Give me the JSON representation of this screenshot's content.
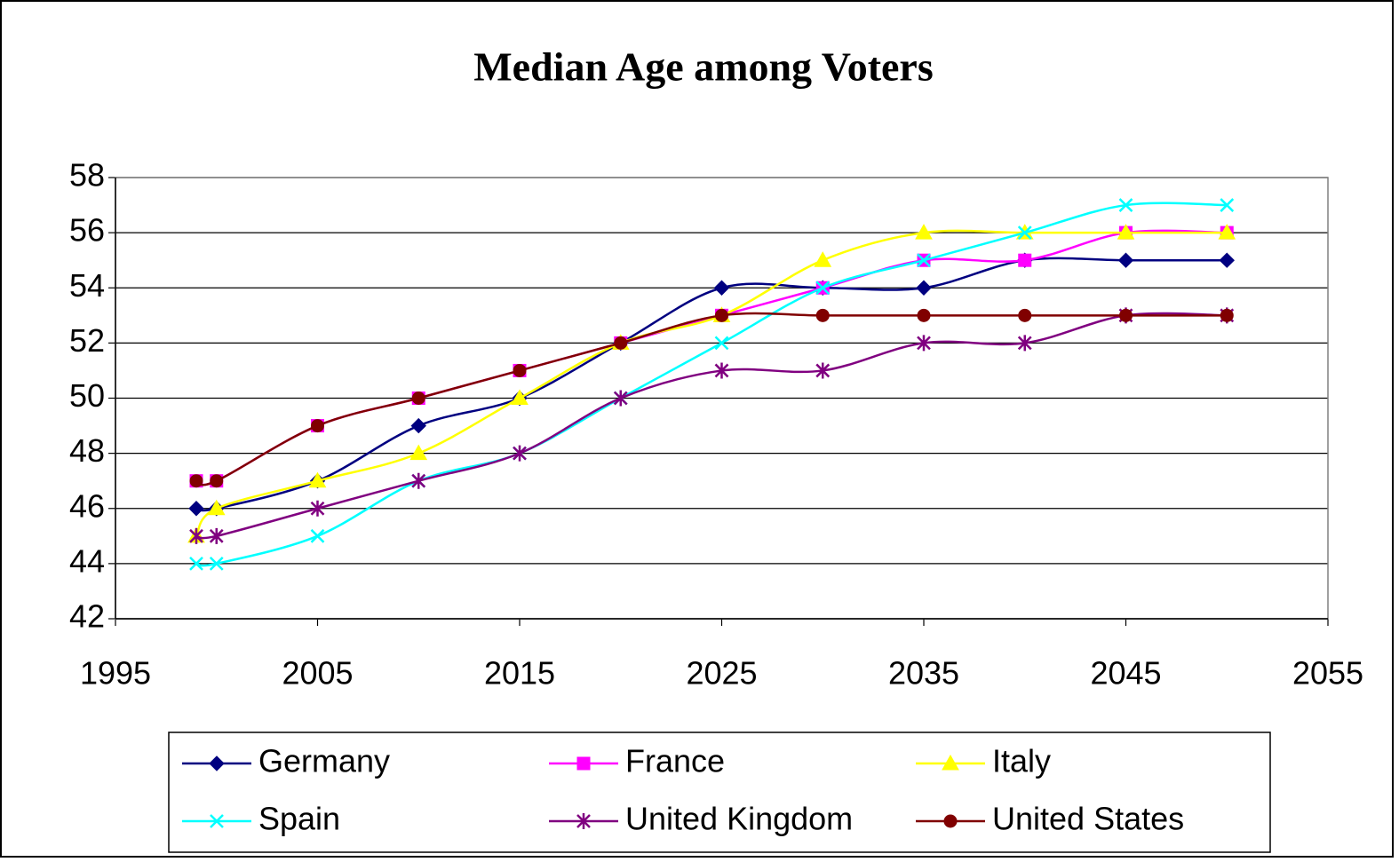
{
  "chart_data": {
    "type": "line",
    "title": "Median Age among Voters",
    "x": [
      1999,
      2000,
      2005,
      2010,
      2015,
      2020,
      2025,
      2030,
      2035,
      2040,
      2045,
      2050
    ],
    "series": [
      {
        "name": "Germany",
        "color": "#000080",
        "marker": "diamond",
        "values": [
          46,
          46,
          47,
          49,
          50,
          52,
          54,
          54,
          54,
          55,
          55,
          55
        ]
      },
      {
        "name": "France",
        "color": "#ff00ff",
        "marker": "square",
        "values": [
          47,
          47,
          49,
          50,
          51,
          52,
          53,
          54,
          55,
          55,
          56,
          56
        ]
      },
      {
        "name": "Italy",
        "color": "#ffff00",
        "marker": "triangle",
        "values": [
          45,
          46,
          47,
          48,
          50,
          52,
          53,
          55,
          56,
          56,
          56,
          56
        ]
      },
      {
        "name": "Spain",
        "color": "#00ffff",
        "marker": "x",
        "values": [
          44,
          44,
          45,
          47,
          48,
          50,
          52,
          54,
          55,
          56,
          57,
          57
        ]
      },
      {
        "name": "United Kingdom",
        "color": "#800080",
        "marker": "star",
        "values": [
          45,
          45,
          46,
          47,
          48,
          50,
          51,
          51,
          52,
          52,
          53,
          53
        ]
      },
      {
        "name": "United States",
        "color": "#800000",
        "marker": "circle",
        "values": [
          47,
          47,
          49,
          50,
          51,
          52,
          53,
          53,
          53,
          53,
          53,
          53
        ]
      }
    ],
    "xlim": [
      1995,
      2055
    ],
    "xticks": [
      1995,
      2005,
      2015,
      2025,
      2035,
      2045,
      2055
    ],
    "ylim": [
      42,
      58
    ],
    "yticks": [
      42,
      44,
      46,
      48,
      50,
      52,
      54,
      56,
      58
    ],
    "grid": true,
    "smooth": true,
    "legend": "bottom"
  }
}
